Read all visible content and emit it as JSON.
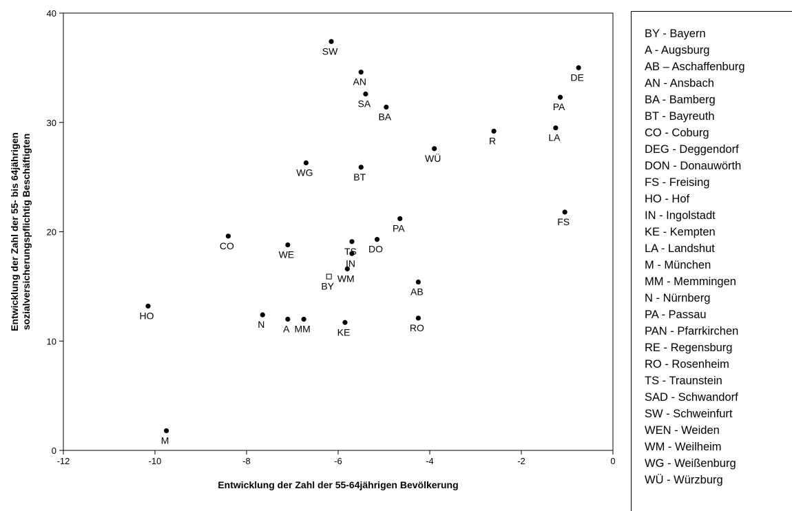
{
  "chart_data": {
    "type": "scatter",
    "title": "",
    "xlabel": "Entwicklung der Zahl der 55-64jährigen Bevölkerung",
    "ylabel_lines": [
      "Entwicklung der Zahl der 55- bis 64jährigen",
      "sozialversicherungspflichtig Beschäftigten"
    ],
    "xlim": [
      -12,
      0
    ],
    "ylim": [
      0,
      40
    ],
    "xticks": [
      -12,
      -10,
      -8,
      -6,
      -4,
      -2,
      0
    ],
    "yticks": [
      0,
      10,
      20,
      30,
      40
    ],
    "grid": false,
    "legend_position": "right",
    "points": [
      {
        "label": "SW",
        "x": -6.15,
        "y": 37.4
      },
      {
        "label": "AN",
        "x": -5.5,
        "y": 34.6
      },
      {
        "label": "SA",
        "x": -5.4,
        "y": 32.6
      },
      {
        "label": "BA",
        "x": -4.95,
        "y": 31.4
      },
      {
        "label": "DE",
        "x": -0.75,
        "y": 35.0
      },
      {
        "label": "PA",
        "x": -1.15,
        "y": 32.3
      },
      {
        "label": "R",
        "x": -2.6,
        "y": 29.2
      },
      {
        "label": "LA",
        "x": -1.25,
        "y": 29.5
      },
      {
        "label": "WÜ",
        "x": -3.9,
        "y": 27.6
      },
      {
        "label": "WG",
        "x": -6.7,
        "y": 26.3
      },
      {
        "label": "BT",
        "x": -5.5,
        "y": 25.9
      },
      {
        "label": "FS",
        "x": -1.05,
        "y": 21.8
      },
      {
        "label": "PA",
        "x": -4.65,
        "y": 21.2
      },
      {
        "label": "CO",
        "x": -8.4,
        "y": 19.6
      },
      {
        "label": "DO",
        "x": -5.15,
        "y": 19.3
      },
      {
        "label": "TS",
        "x": -5.7,
        "y": 19.1
      },
      {
        "label": "WE",
        "x": -7.1,
        "y": 18.8
      },
      {
        "label": "IN",
        "x": -5.7,
        "y": 18.0
      },
      {
        "label": "WM",
        "x": -5.8,
        "y": 16.6
      },
      {
        "label": "BY",
        "x": -6.2,
        "y": 15.9,
        "marker": "open-square"
      },
      {
        "label": "AB",
        "x": -4.25,
        "y": 15.4
      },
      {
        "label": "HO",
        "x": -10.15,
        "y": 13.2
      },
      {
        "label": "N",
        "x": -7.65,
        "y": 12.4
      },
      {
        "label": "A",
        "x": -7.1,
        "y": 12.0
      },
      {
        "label": "MM",
        "x": -6.75,
        "y": 12.0
      },
      {
        "label": "RO",
        "x": -4.25,
        "y": 12.1
      },
      {
        "label": "KE",
        "x": -5.85,
        "y": 11.7
      },
      {
        "label": "M",
        "x": -9.75,
        "y": 1.8
      }
    ]
  },
  "legend": {
    "items": [
      "BY - Bayern",
      "A - Augsburg",
      "AB – Aschaffenburg",
      "AN - Ansbach",
      "BA - Bamberg",
      "BT - Bayreuth",
      "CO - Coburg",
      "DEG - Deggendorf",
      "DON - Donauwörth",
      "FS - Freising",
      "HO - Hof",
      "IN - Ingolstadt",
      "KE - Kempten",
      "LA - Landshut",
      "M - München",
      "MM - Memmingen",
      "N - Nürnberg",
      "PA -  Passau",
      "PAN - Pfarrkirchen",
      "RE - Regensburg",
      "RO - Rosenheim",
      "TS - Traunstein",
      "SAD - Schwandorf",
      "SW - Schweinfurt",
      "WEN - Weiden",
      "WM - Weilheim",
      "WG - Weißenburg",
      "WÜ - Würzburg"
    ]
  }
}
